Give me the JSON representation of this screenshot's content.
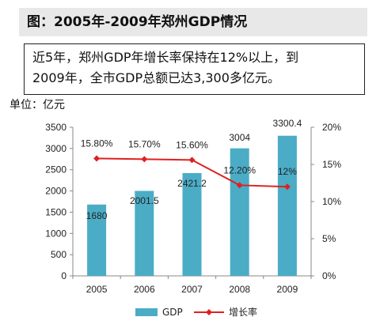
{
  "title": "图：2005年-2009年郑州GDP情况",
  "summary": {
    "line1": "近5年，郑州GDP年增长率保持在12%以上，到",
    "line2": "2009年，全市GDP总额已达3,300多亿元。"
  },
  "unit_label": "单位：亿元",
  "chart_data": {
    "type": "bar",
    "categories": [
      "2005",
      "2006",
      "2007",
      "2008",
      "2009"
    ],
    "series": [
      {
        "name": "GDP",
        "type": "bar",
        "axis": "left",
        "color": "#4bacc6",
        "values": [
          1680,
          2001.5,
          2421.2,
          3004,
          3300.4
        ],
        "labels": [
          "1680",
          "2001.5",
          "2421.2",
          "3004",
          "3300.4"
        ]
      },
      {
        "name": "增长率",
        "type": "line",
        "axis": "right",
        "color": "#e02020",
        "values": [
          15.8,
          15.7,
          15.6,
          12.2,
          12
        ],
        "labels": [
          "15.80%",
          "15.70%",
          "15.60%",
          "12.20%",
          "12%"
        ]
      }
    ],
    "ylim": [
      0,
      3500
    ],
    "yticks": [
      "0",
      "500",
      "1000",
      "1500",
      "2000",
      "2500",
      "3000",
      "3500"
    ],
    "y2lim": [
      0,
      20
    ],
    "y2ticks": [
      "0%",
      "5%",
      "10%",
      "15%",
      "20%"
    ],
    "legend": "bottom",
    "grid": false
  }
}
